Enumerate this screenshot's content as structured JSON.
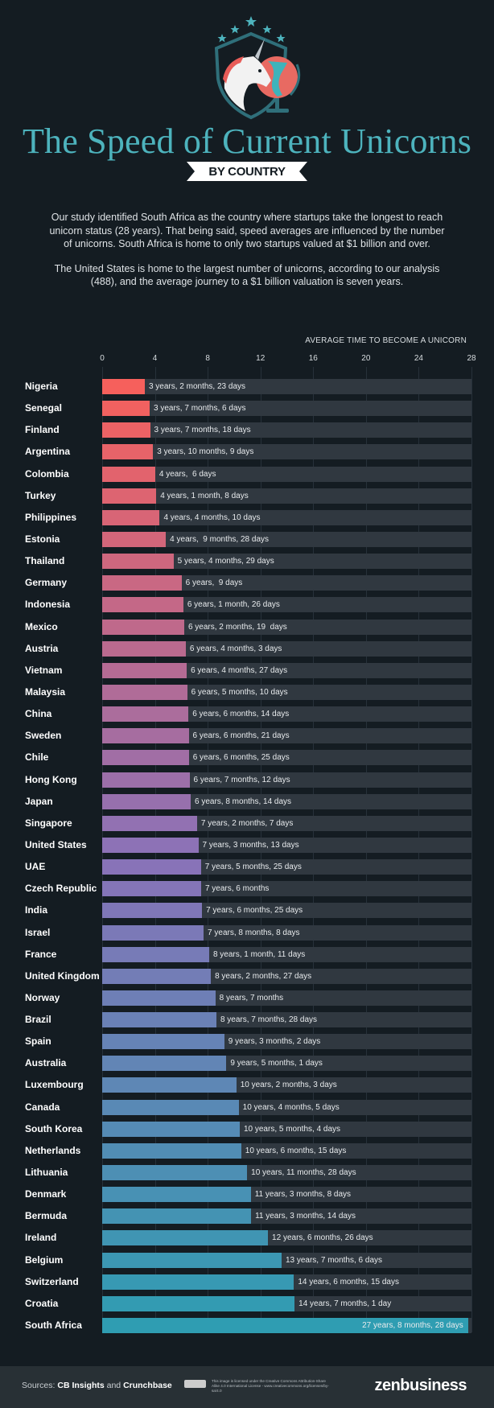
{
  "header": {
    "title": "The Speed of Current Unicorns",
    "subtitle": "BY COUNTRY",
    "logo_icon": "unicorn-shield-globe-icon"
  },
  "intro": {
    "paragraph_1": "Our study identified South Africa as the country where startups take the longest to reach unicorn status (28 years). That being said, speed averages are influenced by the number of unicorns. South Africa is home to only two startups valued at $1 billion and over.",
    "paragraph_2": "The United States is home to the largest number of unicorns, according to our analysis (488), and the average journey to a $1 billion valuation is seven years."
  },
  "colors": {
    "background": "#141c22",
    "title": "#4db3bd",
    "track": "#303840",
    "bar_start": "#f6605c",
    "bar_mid": "#8a72b8",
    "bar_end": "#2f9db2"
  },
  "chart_data": {
    "type": "bar",
    "orientation": "horizontal",
    "title": "AVERAGE TIME TO BECOME A UNICORN",
    "xlabel": "AVERAGE TIME TO BECOME A UNICORN",
    "ylabel": "",
    "xlim": [
      0,
      28
    ],
    "xticks": [
      "0",
      "4",
      "8",
      "12",
      "16",
      "20",
      "24",
      "28"
    ],
    "grid": true,
    "unit": "years",
    "categories": [
      "Nigeria",
      "Senegal",
      "Finland",
      "Argentina",
      "Colombia",
      "Turkey",
      "Philippines",
      "Estonia",
      "Thailand",
      "Germany",
      "Indonesia",
      "Mexico",
      "Austria",
      "Vietnam",
      "Malaysia",
      "China",
      "Sweden",
      "Chile",
      "Hong Kong",
      "Japan",
      "Singapore",
      "United States",
      "UAE",
      "Czech Republic",
      "India",
      "Israel",
      "France",
      "United Kingdom",
      "Norway",
      "Brazil",
      "Spain",
      "Australia",
      "Luxembourg",
      "Canada",
      "South Korea",
      "Netherlands",
      "Lithuania",
      "Denmark",
      "Bermuda",
      "Ireland",
      "Belgium",
      "Switzerland",
      "Croatia",
      "South Africa"
    ],
    "values": [
      3.23,
      3.6,
      3.63,
      3.86,
      4.02,
      4.1,
      4.36,
      4.83,
      5.41,
      6.02,
      6.15,
      6.22,
      6.34,
      6.41,
      6.44,
      6.54,
      6.56,
      6.57,
      6.62,
      6.71,
      7.19,
      7.29,
      7.49,
      7.5,
      7.57,
      7.69,
      8.11,
      8.24,
      8.58,
      8.66,
      9.26,
      9.42,
      10.17,
      10.35,
      10.43,
      10.54,
      10.99,
      11.27,
      11.29,
      12.57,
      13.6,
      14.54,
      14.59,
      27.74
    ],
    "labels": [
      "3 years, 2 months, 23 days",
      "3 years, 7 months, 6 days",
      "3 years, 7 months, 18 days",
      "3 years, 10 months, 9 days",
      "4 years,  6 days",
      "4 years, 1 month, 8 days",
      "4 years, 4 months, 10 days",
      "4 years,  9 months, 28 days",
      "5 years, 4 months, 29 days",
      "6 years,  9 days",
      "6 years, 1 month, 26 days",
      "6 years, 2 months, 19  days",
      "6 years, 4 months, 3 days",
      "6 years, 4 months, 27 days",
      "6 years, 5 months, 10 days",
      "6 years, 6 months, 14 days",
      "6 years, 6 months, 21 days",
      "6 years, 6 months, 25 days",
      "6 years, 7 months, 12 days",
      "6 years, 8 months, 14 days",
      "7 years, 2 months, 7 days",
      "7 years, 3 months, 13 days",
      "7 years, 5 months, 25 days",
      "7 years, 6 months",
      "7 years, 6 months, 25 days",
      "7 years, 8 months, 8 days",
      "8 years, 1 month, 11 days",
      "8 years, 2 months, 27 days",
      "8 years, 7 months",
      "8 years, 7 months, 28 days",
      "9 years, 3 months, 2 days",
      "9 years, 5 months, 1 days",
      "10 years, 2 months, 3 days",
      "10 years, 4 months, 5 days",
      "10 years, 5 months, 4 days",
      "10 years, 6 months, 15 days",
      "10 years, 11 months, 28 days",
      "11 years, 3 months, 8 days",
      "11 years, 3 months, 14 days",
      "12 years, 6 months, 26 days",
      "13 years, 7 months, 6 days",
      "14 years, 6 months, 15 days",
      "14 years, 7 months, 1 day",
      "27 years, 8 months, 28 days"
    ]
  },
  "footer": {
    "sources_prefix": "Sources: ",
    "source_1": "CB Insights",
    "sources_and": " and ",
    "source_2": "Crunchbase",
    "license_icon": "creative-commons-by-sa-icon",
    "license_text": "This image is licensed under the Creative Commons Attribution-Share Alike 4.0 International License - www.creativecommons.org/licenses/by-sa/4.0",
    "brand": "zenbusiness"
  }
}
